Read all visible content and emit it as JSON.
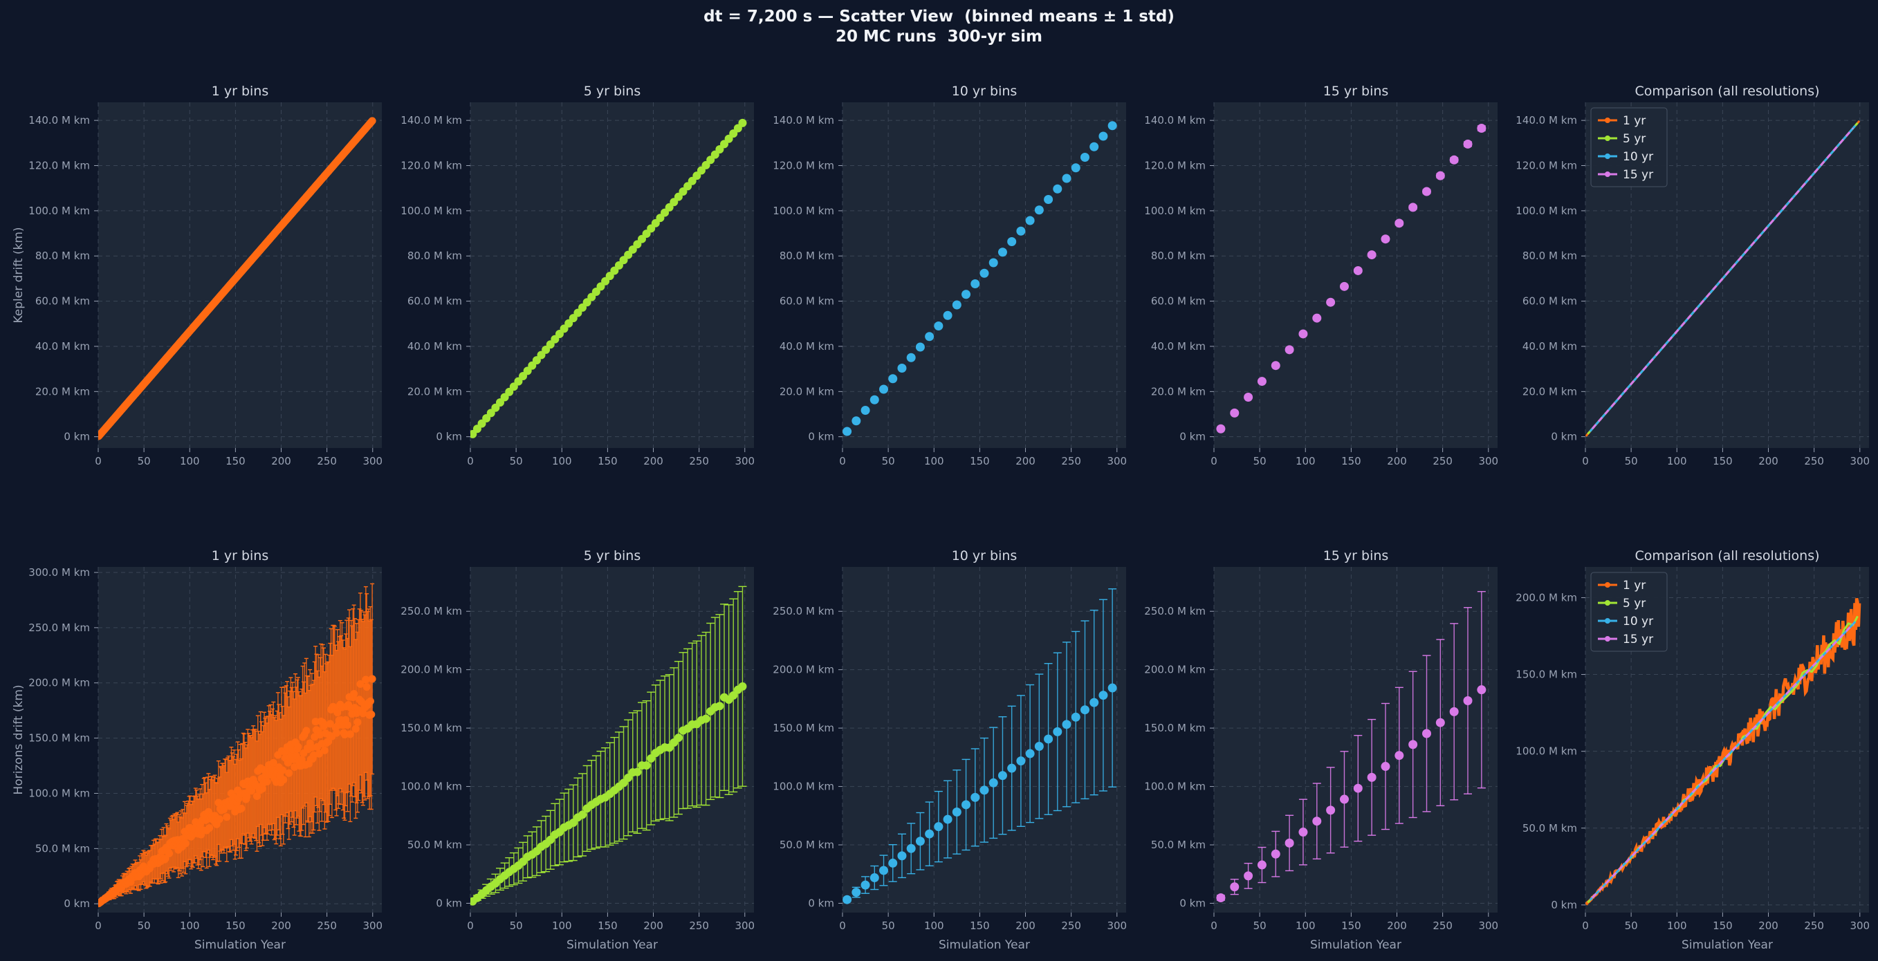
{
  "figure": {
    "title_line1": "dt = 7,200 s — Scatter View  (binned means ± 1 std)",
    "title_line2": "20 MC runs  300-yr sim"
  },
  "colors": {
    "background": "#0f1729",
    "panel": "#1e2837",
    "grid": "#3a4556",
    "text": "#d3d8e2",
    "tick": "#9aa3b4",
    "series_1yr": "#ff6a13",
    "series_5yr": "#a3e635",
    "series_10yr": "#38b2e8",
    "series_15yr": "#d97ae8"
  },
  "chart_data": [
    {
      "type": "scatter",
      "row": "kepler",
      "title": "1 yr bins",
      "ylabel": "Kepler drift  (km)",
      "xlabel": "",
      "xlim": [
        0,
        310
      ],
      "ylim": [
        -5,
        148
      ],
      "xticks": [
        0,
        50,
        100,
        150,
        200,
        250,
        300
      ],
      "yticks": [
        0,
        20,
        40,
        60,
        80,
        100,
        120,
        140
      ],
      "ytick_labels": [
        "0 km",
        "20.0 M km",
        "40.0 M km",
        "60.0 M km",
        "80.0 M km",
        "100.0 M km",
        "120.0 M km",
        "140.0 M km"
      ],
      "grid": true,
      "series": [
        {
          "bin": 1,
          "color": "#ff6a13",
          "slope": 0.4667,
          "std_frac": 0.0,
          "x_start": 0.5,
          "x_end": 299.5
        }
      ]
    },
    {
      "type": "scatter",
      "row": "kepler",
      "title": "5 yr bins",
      "ylabel": "",
      "xlabel": "",
      "xlim": [
        0,
        310
      ],
      "ylim": [
        -5,
        148
      ],
      "xticks": [
        0,
        50,
        100,
        150,
        200,
        250,
        300
      ],
      "yticks": [
        0,
        20,
        40,
        60,
        80,
        100,
        120,
        140
      ],
      "ytick_labels": [
        "0 km",
        "20.0 M km",
        "40.0 M km",
        "60.0 M km",
        "80.0 M km",
        "100.0 M km",
        "120.0 M km",
        "140.0 M km"
      ],
      "grid": true,
      "series": [
        {
          "bin": 5,
          "color": "#a3e635",
          "slope": 0.4667,
          "std_frac": 0.0,
          "x_start": 2.5,
          "x_end": 300
        }
      ]
    },
    {
      "type": "scatter",
      "row": "kepler",
      "title": "10 yr bins",
      "ylabel": "",
      "xlabel": "",
      "xlim": [
        0,
        310
      ],
      "ylim": [
        -5,
        148
      ],
      "xticks": [
        0,
        50,
        100,
        150,
        200,
        250,
        300
      ],
      "yticks": [
        0,
        20,
        40,
        60,
        80,
        100,
        120,
        140
      ],
      "ytick_labels": [
        "0 km",
        "20.0 M km",
        "40.0 M km",
        "60.0 M km",
        "80.0 M km",
        "100.0 M km",
        "120.0 M km",
        "140.0 M km"
      ],
      "grid": true,
      "series": [
        {
          "bin": 10,
          "color": "#38b2e8",
          "slope": 0.4667,
          "std_frac": 0.004,
          "x_start": 5,
          "x_end": 295
        }
      ]
    },
    {
      "type": "scatter",
      "row": "kepler",
      "title": "15 yr bins",
      "ylabel": "",
      "xlabel": "",
      "xlim": [
        0,
        310
      ],
      "ylim": [
        -5,
        148
      ],
      "xticks": [
        0,
        50,
        100,
        150,
        200,
        250,
        300
      ],
      "yticks": [
        0,
        20,
        40,
        60,
        80,
        100,
        120,
        140
      ],
      "ytick_labels": [
        "0 km",
        "20.0 M km",
        "40.0 M km",
        "60.0 M km",
        "80.0 M km",
        "100.0 M km",
        "120.0 M km",
        "140.0 M km"
      ],
      "grid": true,
      "series": [
        {
          "bin": 15,
          "color": "#d97ae8",
          "slope": 0.4667,
          "std_frac": 0.008,
          "x_start": 7.5,
          "x_end": 292.5
        }
      ]
    },
    {
      "type": "line",
      "row": "kepler",
      "title": "Comparison (all resolutions)",
      "ylabel": "",
      "xlabel": "",
      "xlim": [
        0,
        310
      ],
      "ylim": [
        -5,
        148
      ],
      "xticks": [
        0,
        50,
        100,
        150,
        200,
        250,
        300
      ],
      "yticks": [
        0,
        20,
        40,
        60,
        80,
        100,
        120,
        140
      ],
      "ytick_labels": [
        "0 km",
        "20.0 M km",
        "40.0 M km",
        "60.0 M km",
        "80.0 M km",
        "100.0 M km",
        "120.0 M km",
        "140.0 M km"
      ],
      "grid": true,
      "legend": "top-left",
      "series": [
        {
          "name": "1 yr",
          "bin": 1,
          "color": "#ff6a13",
          "slope": 0.4667
        },
        {
          "name": "5 yr",
          "bin": 5,
          "color": "#a3e635",
          "slope": 0.4667
        },
        {
          "name": "10 yr",
          "bin": 10,
          "color": "#38b2e8",
          "slope": 0.4667
        },
        {
          "name": "15 yr",
          "bin": 15,
          "color": "#d97ae8",
          "slope": 0.4667
        }
      ]
    },
    {
      "type": "scatter",
      "row": "horizons",
      "title": "1 yr bins",
      "ylabel": "Horizons drift  (km)",
      "xlabel": "Simulation Year",
      "xlim": [
        0,
        310
      ],
      "ylim": [
        -8,
        305
      ],
      "xticks": [
        0,
        50,
        100,
        150,
        200,
        250,
        300
      ],
      "yticks": [
        0,
        50,
        100,
        150,
        200,
        250,
        300
      ],
      "ytick_labels": [
        "0 km",
        "50.0 M km",
        "100.0 M km",
        "150.0 M km",
        "200.0 M km",
        "250.0 M km",
        "300.0 M km"
      ],
      "grid": true,
      "series": [
        {
          "bin": 1,
          "color": "#ff6a13",
          "slope": 0.625,
          "std_frac": 0.46,
          "noise": 0.12,
          "x_start": 0.5,
          "x_end": 299.5
        }
      ]
    },
    {
      "type": "scatter",
      "row": "horizons",
      "title": "5 yr bins",
      "ylabel": "",
      "xlabel": "Simulation Year",
      "xlim": [
        0,
        310
      ],
      "ylim": [
        -8,
        288
      ],
      "xticks": [
        0,
        50,
        100,
        150,
        200,
        250,
        300
      ],
      "yticks": [
        0,
        50,
        100,
        150,
        200,
        250
      ],
      "ytick_labels": [
        "0 km",
        "50.0 M km",
        "100.0 M km",
        "150.0 M km",
        "200.0 M km",
        "250.0 M km"
      ],
      "grid": true,
      "series": [
        {
          "bin": 5,
          "color": "#a3e635",
          "slope": 0.625,
          "std_frac": 0.46,
          "noise": 0.02,
          "x_start": 2.5,
          "x_end": 300
        }
      ]
    },
    {
      "type": "scatter",
      "row": "horizons",
      "title": "10 yr bins",
      "ylabel": "",
      "xlabel": "Simulation Year",
      "xlim": [
        0,
        310
      ],
      "ylim": [
        -8,
        288
      ],
      "xticks": [
        0,
        50,
        100,
        150,
        200,
        250,
        300
      ],
      "yticks": [
        0,
        50,
        100,
        150,
        200,
        250
      ],
      "ytick_labels": [
        "0 km",
        "50.0 M km",
        "100.0 M km",
        "150.0 M km",
        "200.0 M km",
        "250.0 M km"
      ],
      "grid": true,
      "series": [
        {
          "bin": 10,
          "color": "#38b2e8",
          "slope": 0.625,
          "std_frac": 0.46,
          "noise": 0.0,
          "x_start": 5,
          "x_end": 295
        }
      ]
    },
    {
      "type": "scatter",
      "row": "horizons",
      "title": "15 yr bins",
      "ylabel": "",
      "xlabel": "Simulation Year",
      "xlim": [
        0,
        310
      ],
      "ylim": [
        -8,
        288
      ],
      "xticks": [
        0,
        50,
        100,
        150,
        200,
        250,
        300
      ],
      "yticks": [
        0,
        50,
        100,
        150,
        200,
        250
      ],
      "ytick_labels": [
        "0 km",
        "50.0 M km",
        "100.0 M km",
        "150.0 M km",
        "200.0 M km",
        "250.0 M km"
      ],
      "grid": true,
      "series": [
        {
          "bin": 15,
          "color": "#d97ae8",
          "slope": 0.625,
          "std_frac": 0.46,
          "noise": 0.0,
          "x_start": 7.5,
          "x_end": 292.5
        }
      ]
    },
    {
      "type": "line",
      "row": "horizons",
      "title": "Comparison (all resolutions)",
      "ylabel": "",
      "xlabel": "Simulation Year",
      "xlim": [
        0,
        310
      ],
      "ylim": [
        -5,
        220
      ],
      "xticks": [
        0,
        50,
        100,
        150,
        200,
        250,
        300
      ],
      "yticks": [
        0,
        50,
        100,
        150,
        200
      ],
      "ytick_labels": [
        "0 km",
        "50.0 M km",
        "100.0 M km",
        "150.0 M km",
        "200.0 M km"
      ],
      "grid": true,
      "legend": "top-left",
      "series": [
        {
          "name": "1 yr",
          "bin": 1,
          "color": "#ff6a13",
          "slope": 0.625,
          "noise": 0.08
        },
        {
          "name": "5 yr",
          "bin": 5,
          "color": "#a3e635",
          "slope": 0.625,
          "noise": 0.02
        },
        {
          "name": "10 yr",
          "bin": 10,
          "color": "#38b2e8",
          "slope": 0.625,
          "noise": 0.0
        },
        {
          "name": "15 yr",
          "bin": 15,
          "color": "#d97ae8",
          "slope": 0.625,
          "noise": 0.0
        }
      ]
    }
  ]
}
